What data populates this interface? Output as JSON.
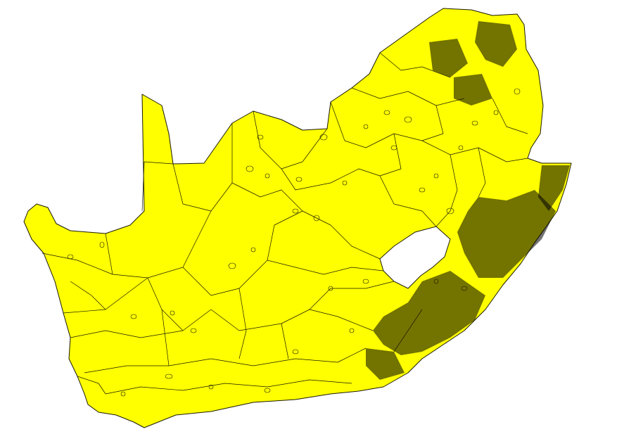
{
  "map": {
    "region_fill": "#ffff00",
    "boundary_color": "#1a1a00",
    "background": "#ffffff",
    "enclave_fill": "#ffffff",
    "dense_boundary_color": "#000000"
  }
}
